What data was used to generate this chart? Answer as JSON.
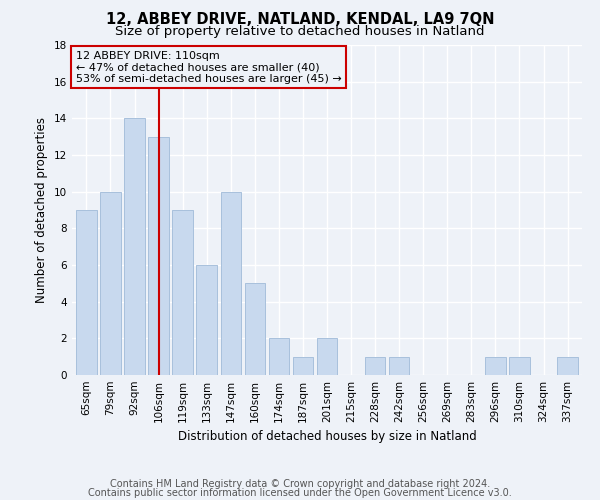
{
  "title1": "12, ABBEY DRIVE, NATLAND, KENDAL, LA9 7QN",
  "title2": "Size of property relative to detached houses in Natland",
  "xlabel": "Distribution of detached houses by size in Natland",
  "ylabel": "Number of detached properties",
  "categories": [
    "65sqm",
    "79sqm",
    "92sqm",
    "106sqm",
    "119sqm",
    "133sqm",
    "147sqm",
    "160sqm",
    "174sqm",
    "187sqm",
    "201sqm",
    "215sqm",
    "228sqm",
    "242sqm",
    "256sqm",
    "269sqm",
    "283sqm",
    "296sqm",
    "310sqm",
    "324sqm",
    "337sqm"
  ],
  "values": [
    9,
    10,
    14,
    13,
    9,
    6,
    10,
    5,
    2,
    1,
    2,
    0,
    1,
    1,
    0,
    0,
    0,
    1,
    1,
    0,
    1
  ],
  "bar_color": "#c8d9ee",
  "bar_edge_color": "#a8c0dc",
  "vline_x_index": 3,
  "vline_color": "#cc0000",
  "annotation_line1": "12 ABBEY DRIVE: 110sqm",
  "annotation_line2": "← 47% of detached houses are smaller (40)",
  "annotation_line3": "53% of semi-detached houses are larger (45) →",
  "annotation_box_color": "#cc0000",
  "ylim": [
    0,
    18
  ],
  "yticks": [
    0,
    2,
    4,
    6,
    8,
    10,
    12,
    14,
    16,
    18
  ],
  "footer1": "Contains HM Land Registry data © Crown copyright and database right 2024.",
  "footer2": "Contains public sector information licensed under the Open Government Licence v3.0.",
  "bg_color": "#eef2f8",
  "grid_color": "#ffffff",
  "title_fontsize": 10.5,
  "subtitle_fontsize": 9.5,
  "axis_label_fontsize": 8.5,
  "tick_fontsize": 7.5,
  "annotation_fontsize": 8,
  "footer_fontsize": 7
}
